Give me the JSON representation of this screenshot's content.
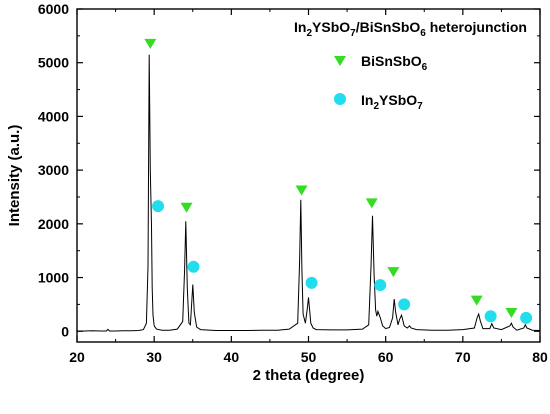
{
  "chart_data": {
    "type": "line",
    "title": "",
    "xlabel": "2 theta (degree)",
    "ylabel": "Intensity (a.u.)",
    "xlim": [
      20,
      80
    ],
    "ylim": [
      -200,
      6000
    ],
    "xticks": [
      20,
      30,
      40,
      50,
      60,
      70,
      80
    ],
    "yticks": [
      0,
      1000,
      2000,
      3000,
      4000,
      5000,
      6000
    ],
    "grid": false,
    "legend_position": "top-right",
    "legend": {
      "heading": {
        "base": "In",
        "sub1": "2",
        "mid1": "YSbO",
        "sub2": "7",
        "mid2": "/BiSnSbO",
        "sub3": "6",
        "tail": " heterojunction"
      },
      "entries": [
        {
          "key": "bisnsbo6",
          "marker": "triangle-down",
          "color": "#33dd22",
          "base": "BiSnSbO",
          "sub": "6"
        },
        {
          "key": "in2ysbo7",
          "marker": "circle",
          "color": "#22ddee",
          "base": "In",
          "sub": "2",
          "mid": "YSbO",
          "sub2": "7"
        }
      ]
    },
    "series": [
      {
        "line_color": "#000000",
        "x": [
          20,
          21,
          22,
          23,
          23.8,
          24,
          24.2,
          25,
          26,
          27,
          28,
          28.6,
          29,
          29.2,
          29.35,
          29.5,
          29.65,
          29.75,
          29.85,
          30,
          30.3,
          31,
          32,
          33,
          33.7,
          33.95,
          34.1,
          34.3,
          34.5,
          34.7,
          34.9,
          35.0,
          35.2,
          35.5,
          36,
          38,
          40,
          42,
          44,
          46,
          47.5,
          48.6,
          48.85,
          49.0,
          49.15,
          49.3,
          49.6,
          49.85,
          50.0,
          50.15,
          50.3,
          50.6,
          51,
          53,
          55,
          57,
          57.8,
          58.1,
          58.3,
          58.5,
          58.7,
          58.85,
          59.0,
          59.3,
          59.6,
          60,
          60.5,
          60.9,
          61.1,
          61.3,
          61.6,
          61.8,
          62.05,
          62.2,
          62.4,
          62.8,
          63.1,
          63.3,
          64,
          66,
          68,
          70,
          71.5,
          71.85,
          72.05,
          72.25,
          72.6,
          73.5,
          73.75,
          74.0,
          75,
          76.1,
          76.3,
          76.5,
          77,
          77.9,
          78.1,
          78.3,
          79,
          80
        ],
        "y": [
          5,
          5,
          8,
          5,
          5,
          35,
          5,
          5,
          8,
          8,
          15,
          30,
          150,
          1200,
          5150,
          3000,
          1950,
          800,
          300,
          100,
          40,
          20,
          20,
          40,
          180,
          1150,
          2050,
          800,
          150,
          120,
          620,
          870,
          350,
          80,
          30,
          15,
          15,
          15,
          20,
          20,
          40,
          150,
          1300,
          2450,
          1150,
          320,
          150,
          420,
          630,
          380,
          150,
          60,
          30,
          25,
          25,
          40,
          120,
          1200,
          2150,
          1050,
          400,
          280,
          370,
          250,
          100,
          50,
          70,
          250,
          600,
          350,
          120,
          220,
          300,
          220,
          100,
          60,
          100,
          60,
          30,
          20,
          20,
          30,
          60,
          250,
          320,
          200,
          50,
          50,
          140,
          60,
          30,
          100,
          150,
          80,
          20,
          60,
          120,
          60,
          20,
          15
        ]
      }
    ],
    "markers": [
      {
        "phase": "bisnsbo6",
        "x": 29.5,
        "y": 5350
      },
      {
        "phase": "bisnsbo6",
        "x": 34.2,
        "y": 2300
      },
      {
        "phase": "bisnsbo6",
        "x": 49.1,
        "y": 2620
      },
      {
        "phase": "bisnsbo6",
        "x": 58.2,
        "y": 2380
      },
      {
        "phase": "bisnsbo6",
        "x": 61.0,
        "y": 1100
      },
      {
        "phase": "bisnsbo6",
        "x": 71.8,
        "y": 570
      },
      {
        "phase": "bisnsbo6",
        "x": 76.3,
        "y": 340
      },
      {
        "phase": "in2ysbo7",
        "x": 30.5,
        "y": 2330
      },
      {
        "phase": "in2ysbo7",
        "x": 35.1,
        "y": 1200
      },
      {
        "phase": "in2ysbo7",
        "x": 50.4,
        "y": 900
      },
      {
        "phase": "in2ysbo7",
        "x": 59.3,
        "y": 860
      },
      {
        "phase": "in2ysbo7",
        "x": 62.4,
        "y": 500
      },
      {
        "phase": "in2ysbo7",
        "x": 73.6,
        "y": 280
      },
      {
        "phase": "in2ysbo7",
        "x": 78.2,
        "y": 250
      }
    ]
  }
}
